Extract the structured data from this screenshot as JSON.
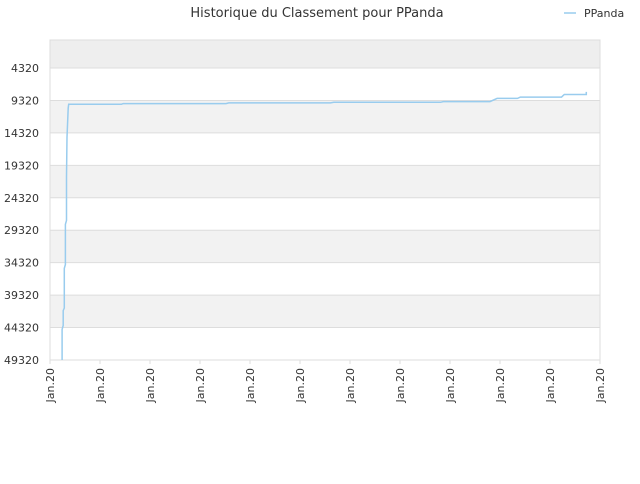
{
  "chart_data": {
    "type": "line",
    "title": "Historique du Classement pour PPanda",
    "xlabel": "",
    "ylabel": "",
    "inverted_y": true,
    "ylim": [
      49320,
      0
    ],
    "y_ticks": [
      4320,
      9320,
      14320,
      19320,
      24320,
      29320,
      34320,
      39320,
      44320,
      49320
    ],
    "x_ticks": [
      "Jan.20",
      "Jan.20",
      "Jan.20",
      "Jan.20",
      "Jan.20",
      "Jan.20",
      "Jan.20",
      "Jan.20",
      "Jan.20",
      "Jan.20",
      "Jan.20",
      "Jan.20"
    ],
    "grid": "horizontal, alternating shaded bands",
    "legend": {
      "position": "top-right",
      "entries": [
        "PPanda"
      ]
    },
    "colors": {
      "series": "#99ccee",
      "band_shade": "#eeeeee",
      "grid": "#dddddd",
      "axis": "#dddddd",
      "text": "#333333"
    },
    "series": [
      {
        "name": "PPanda",
        "x_fraction": [
          0.022,
          0.022,
          0.024,
          0.024,
          0.026,
          0.026,
          0.028,
          0.028,
          0.03,
          0.03,
          0.031,
          0.033,
          0.034,
          0.13,
          0.133,
          0.32,
          0.325,
          0.51,
          0.516,
          0.71,
          0.715,
          0.8,
          0.813,
          0.85,
          0.855,
          0.93,
          0.935,
          0.975,
          0.975
        ],
        "values": [
          49320,
          44600,
          44000,
          41700,
          41300,
          35200,
          34600,
          28400,
          27800,
          21100,
          15000,
          10500,
          9900,
          9900,
          9800,
          9800,
          9700,
          9700,
          9600,
          9600,
          9500,
          9500,
          9000,
          9000,
          8800,
          8800,
          8400,
          8400,
          8000
        ]
      }
    ]
  }
}
